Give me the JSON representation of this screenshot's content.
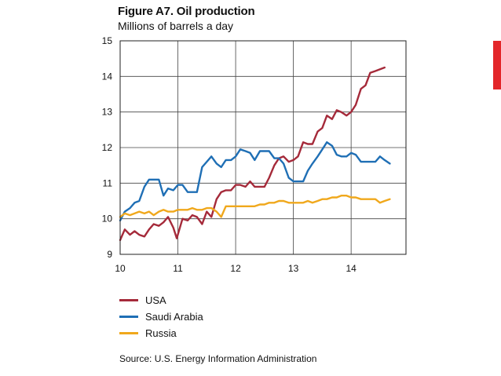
{
  "chart_data": {
    "type": "line",
    "title": "Figure A7. Oil production",
    "subtitle": "Millions of barrels a day",
    "xlabel": "",
    "ylabel": "",
    "xlim": [
      10,
      14.95
    ],
    "ylim": [
      9,
      15
    ],
    "x_ticks": [
      "10",
      "11",
      "12",
      "13",
      "14"
    ],
    "y_ticks": [
      "9",
      "10",
      "11",
      "12",
      "13",
      "14",
      "15"
    ],
    "grid": true,
    "source": "Source: U.S. Energy Information Administration",
    "series": [
      {
        "name": "USA",
        "color": "#a52a3a",
        "points": [
          [
            10.0,
            9.4
          ],
          [
            10.08,
            9.7
          ],
          [
            10.17,
            9.55
          ],
          [
            10.25,
            9.65
          ],
          [
            10.33,
            9.55
          ],
          [
            10.42,
            9.5
          ],
          [
            10.5,
            9.7
          ],
          [
            10.58,
            9.85
          ],
          [
            10.67,
            9.8
          ],
          [
            10.75,
            9.9
          ],
          [
            10.83,
            10.05
          ],
          [
            10.92,
            9.75
          ],
          [
            10.98,
            9.45
          ],
          [
            11.08,
            10.0
          ],
          [
            11.17,
            9.95
          ],
          [
            11.25,
            10.1
          ],
          [
            11.33,
            10.05
          ],
          [
            11.42,
            9.85
          ],
          [
            11.5,
            10.2
          ],
          [
            11.58,
            10.05
          ],
          [
            11.67,
            10.55
          ],
          [
            11.75,
            10.75
          ],
          [
            11.83,
            10.8
          ],
          [
            11.92,
            10.8
          ],
          [
            12.0,
            10.95
          ],
          [
            12.08,
            10.95
          ],
          [
            12.17,
            10.9
          ],
          [
            12.25,
            11.05
          ],
          [
            12.33,
            10.9
          ],
          [
            12.42,
            10.9
          ],
          [
            12.5,
            10.9
          ],
          [
            12.58,
            11.15
          ],
          [
            12.67,
            11.5
          ],
          [
            12.75,
            11.7
          ],
          [
            12.83,
            11.75
          ],
          [
            12.92,
            11.6
          ],
          [
            13.0,
            11.65
          ],
          [
            13.08,
            11.75
          ],
          [
            13.17,
            12.15
          ],
          [
            13.25,
            12.1
          ],
          [
            13.33,
            12.1
          ],
          [
            13.42,
            12.45
          ],
          [
            13.5,
            12.55
          ],
          [
            13.58,
            12.9
          ],
          [
            13.67,
            12.8
          ],
          [
            13.75,
            13.05
          ],
          [
            13.83,
            13.0
          ],
          [
            13.92,
            12.9
          ],
          [
            14.0,
            13.0
          ],
          [
            14.08,
            13.2
          ],
          [
            14.17,
            13.65
          ],
          [
            14.25,
            13.75
          ],
          [
            14.33,
            14.1
          ],
          [
            14.42,
            14.15
          ],
          [
            14.5,
            14.2
          ],
          [
            14.58,
            14.25
          ]
        ]
      },
      {
        "name": "Saudi Arabia",
        "color": "#1f6fb5",
        "points": [
          [
            10.0,
            9.95
          ],
          [
            10.08,
            10.2
          ],
          [
            10.17,
            10.3
          ],
          [
            10.25,
            10.45
          ],
          [
            10.33,
            10.5
          ],
          [
            10.42,
            10.9
          ],
          [
            10.5,
            11.1
          ],
          [
            10.58,
            11.1
          ],
          [
            10.67,
            11.1
          ],
          [
            10.75,
            10.65
          ],
          [
            10.83,
            10.85
          ],
          [
            10.92,
            10.8
          ],
          [
            11.0,
            10.95
          ],
          [
            11.08,
            10.95
          ],
          [
            11.17,
            10.75
          ],
          [
            11.25,
            10.75
          ],
          [
            11.33,
            10.75
          ],
          [
            11.42,
            11.45
          ],
          [
            11.5,
            11.6
          ],
          [
            11.58,
            11.75
          ],
          [
            11.67,
            11.55
          ],
          [
            11.75,
            11.45
          ],
          [
            11.83,
            11.65
          ],
          [
            11.92,
            11.65
          ],
          [
            12.0,
            11.75
          ],
          [
            12.08,
            11.95
          ],
          [
            12.17,
            11.9
          ],
          [
            12.25,
            11.85
          ],
          [
            12.33,
            11.65
          ],
          [
            12.42,
            11.9
          ],
          [
            12.5,
            11.9
          ],
          [
            12.58,
            11.9
          ],
          [
            12.67,
            11.7
          ],
          [
            12.75,
            11.7
          ],
          [
            12.83,
            11.55
          ],
          [
            12.92,
            11.15
          ],
          [
            13.0,
            11.05
          ],
          [
            13.08,
            11.05
          ],
          [
            13.17,
            11.05
          ],
          [
            13.25,
            11.35
          ],
          [
            13.33,
            11.55
          ],
          [
            13.42,
            11.75
          ],
          [
            13.5,
            11.95
          ],
          [
            13.58,
            12.15
          ],
          [
            13.67,
            12.05
          ],
          [
            13.75,
            11.8
          ],
          [
            13.83,
            11.75
          ],
          [
            13.92,
            11.75
          ],
          [
            14.0,
            11.85
          ],
          [
            14.08,
            11.8
          ],
          [
            14.17,
            11.6
          ],
          [
            14.25,
            11.6
          ],
          [
            14.33,
            11.6
          ],
          [
            14.42,
            11.6
          ],
          [
            14.5,
            11.75
          ],
          [
            14.58,
            11.65
          ],
          [
            14.67,
            11.55
          ]
        ]
      },
      {
        "name": "Russia",
        "color": "#f0a81c",
        "points": [
          [
            10.0,
            10.05
          ],
          [
            10.08,
            10.15
          ],
          [
            10.17,
            10.1
          ],
          [
            10.25,
            10.15
          ],
          [
            10.33,
            10.2
          ],
          [
            10.42,
            10.15
          ],
          [
            10.5,
            10.2
          ],
          [
            10.58,
            10.1
          ],
          [
            10.67,
            10.2
          ],
          [
            10.75,
            10.25
          ],
          [
            10.83,
            10.2
          ],
          [
            10.92,
            10.2
          ],
          [
            11.0,
            10.25
          ],
          [
            11.08,
            10.25
          ],
          [
            11.17,
            10.25
          ],
          [
            11.25,
            10.3
          ],
          [
            11.33,
            10.25
          ],
          [
            11.42,
            10.25
          ],
          [
            11.5,
            10.3
          ],
          [
            11.58,
            10.3
          ],
          [
            11.67,
            10.2
          ],
          [
            11.75,
            10.05
          ],
          [
            11.83,
            10.35
          ],
          [
            11.92,
            10.35
          ],
          [
            12.0,
            10.35
          ],
          [
            12.08,
            10.35
          ],
          [
            12.17,
            10.35
          ],
          [
            12.25,
            10.35
          ],
          [
            12.33,
            10.35
          ],
          [
            12.42,
            10.4
          ],
          [
            12.5,
            10.4
          ],
          [
            12.58,
            10.45
          ],
          [
            12.67,
            10.45
          ],
          [
            12.75,
            10.5
          ],
          [
            12.83,
            10.5
          ],
          [
            12.92,
            10.45
          ],
          [
            13.0,
            10.45
          ],
          [
            13.08,
            10.45
          ],
          [
            13.17,
            10.45
          ],
          [
            13.25,
            10.5
          ],
          [
            13.33,
            10.45
          ],
          [
            13.42,
            10.5
          ],
          [
            13.5,
            10.55
          ],
          [
            13.58,
            10.55
          ],
          [
            13.67,
            10.6
          ],
          [
            13.75,
            10.6
          ],
          [
            13.83,
            10.65
          ],
          [
            13.92,
            10.65
          ],
          [
            14.0,
            10.6
          ],
          [
            14.08,
            10.6
          ],
          [
            14.17,
            10.55
          ],
          [
            14.25,
            10.55
          ],
          [
            14.33,
            10.55
          ],
          [
            14.42,
            10.55
          ],
          [
            14.5,
            10.45
          ],
          [
            14.58,
            10.5
          ],
          [
            14.67,
            10.55
          ]
        ]
      }
    ]
  }
}
